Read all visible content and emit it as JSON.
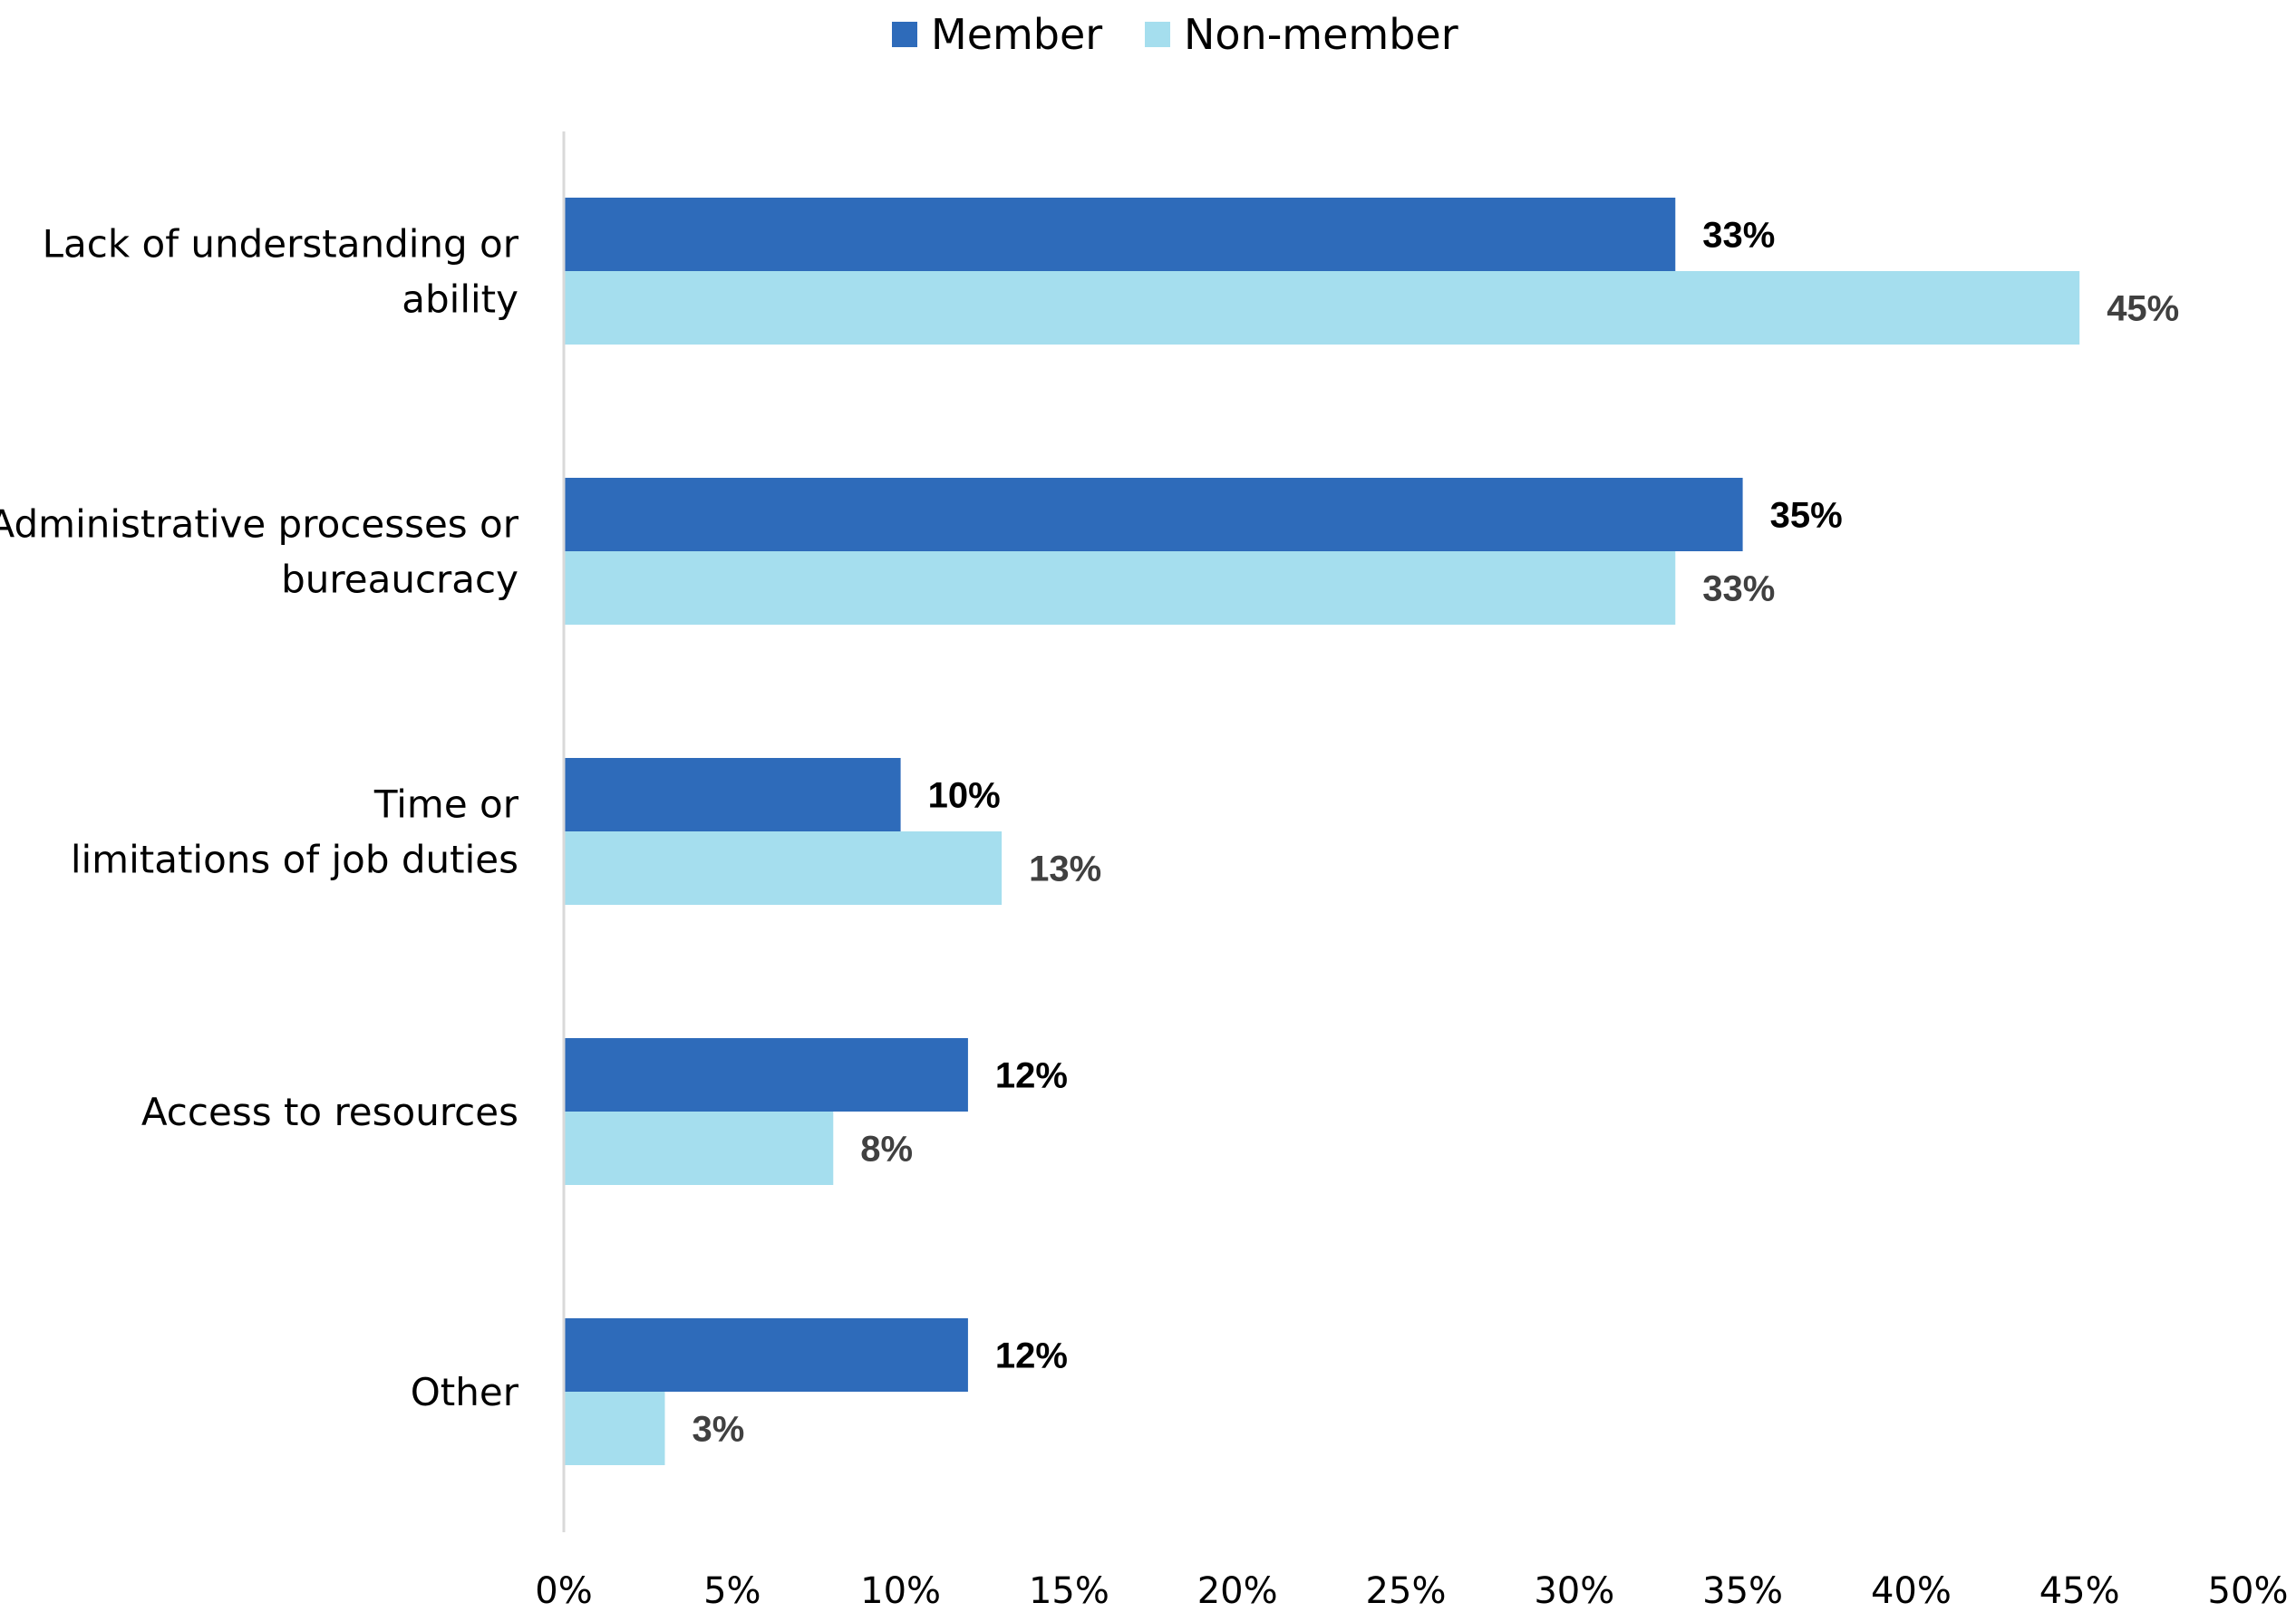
{
  "chart_data": {
    "type": "bar",
    "orientation": "horizontal",
    "categories": [
      [
        "Lack of understanding or",
        "ability"
      ],
      [
        "Administrative processes or",
        "bureaucracy"
      ],
      [
        "Time or",
        "limitations of job duties"
      ],
      [
        "Access to resources"
      ],
      [
        "Other"
      ]
    ],
    "series": [
      {
        "name": "Member",
        "color": "#2E6BBA",
        "label_color": "#000000",
        "values": [
          33,
          35,
          10,
          12,
          12
        ],
        "labels": [
          "33%",
          "35%",
          "10%",
          "12%",
          "12%"
        ]
      },
      {
        "name": "Non-member",
        "color": "#A5DEEE",
        "label_color": "#404040",
        "values": [
          45,
          33,
          13,
          8,
          3
        ],
        "labels": [
          "45%",
          "33%",
          "13%",
          "8%",
          "3%"
        ]
      }
    ],
    "xlim": [
      0,
      50
    ],
    "xticks": [
      0,
      5,
      10,
      15,
      20,
      25,
      30,
      35,
      40,
      45,
      50
    ],
    "xtick_labels": [
      "0%",
      "5%",
      "10%",
      "15%",
      "20%",
      "25%",
      "30%",
      "35%",
      "40%",
      "45%",
      "50%"
    ],
    "legend_position": "top-center",
    "grid": false,
    "title": "",
    "xlabel": "",
    "ylabel": ""
  }
}
